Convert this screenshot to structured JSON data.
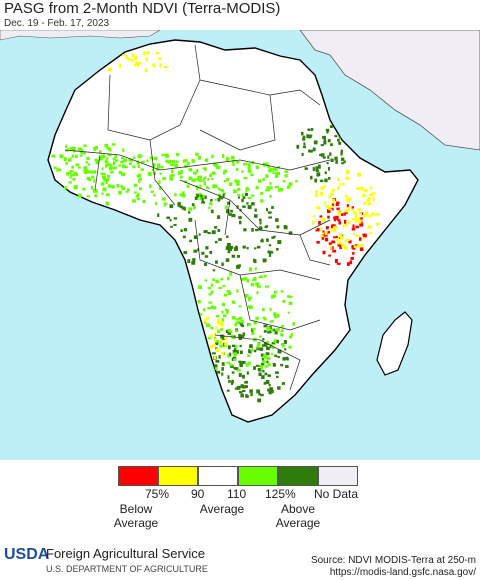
{
  "header": {
    "title": "PASG from 2-Month NDVI (Terra-MODIS)",
    "date_range": "Dec. 19 - Feb. 17, 2023"
  },
  "legend": {
    "swatches": [
      {
        "color": "#ff0000"
      },
      {
        "color": "#ffff00"
      },
      {
        "color": "#ffffff"
      },
      {
        "color": "#66ff00"
      },
      {
        "color": "#2e7d0a"
      },
      {
        "color": "#f0eef4"
      }
    ],
    "ticks": [
      "75%",
      "90",
      "110",
      "125%",
      "No Data"
    ],
    "below_label": "Below Average",
    "average_label": "Average",
    "above_label": "Above Average"
  },
  "map": {
    "ocean_color": "#bfeff6",
    "land_color": "#ffffff",
    "nodata_color": "#f0eef4",
    "border_color": "#000000"
  },
  "footer": {
    "logo": "USDA",
    "agency": "Foreign Agricultural Service",
    "department": "U.S. DEPARTMENT OF AGRICULTURE",
    "source": "Source: NDVI MODIS-Terra at 250-m",
    "url": "https://modis-land.gsfc.nasa.gov/"
  }
}
